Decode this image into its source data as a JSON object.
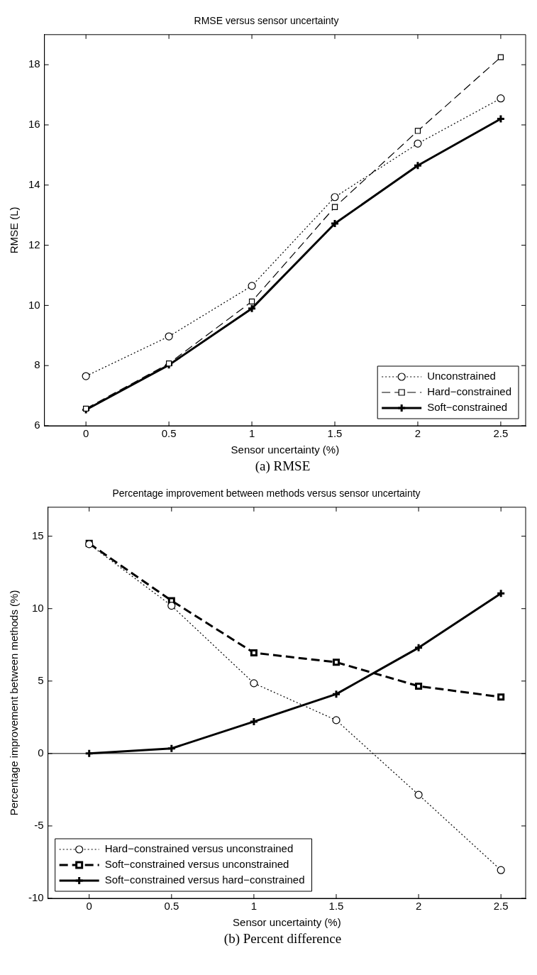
{
  "chart_data": [
    {
      "type": "line",
      "title": "RMSE versus sensor uncertainty",
      "xlabel": "Sensor uncertainty (%)",
      "ylabel": "RMSE (L)",
      "x": [
        0,
        0.5,
        1,
        1.5,
        2,
        2.5
      ],
      "xlim": [
        -0.25,
        2.65
      ],
      "xticks": [
        0,
        0.5,
        1,
        1.5,
        2,
        2.5
      ],
      "ylim": [
        6,
        19
      ],
      "yticks": [
        6,
        8,
        10,
        12,
        14,
        16,
        18
      ],
      "grid": false,
      "legend": "bottom right",
      "series": [
        {
          "name": "Unconstrained",
          "color": "#000000",
          "marker": "circle",
          "line_style": "dotted",
          "values": [
            7.65,
            8.97,
            10.65,
            13.6,
            15.38,
            16.88
          ]
        },
        {
          "name": "Hard−constrained",
          "color": "#000000",
          "marker": "square",
          "line_style": "dashed",
          "values": [
            6.57,
            8.07,
            10.13,
            13.27,
            15.8,
            18.25
          ]
        },
        {
          "name": "Soft−constrained",
          "color": "#000000",
          "marker": "cross",
          "line_style": "solid",
          "values": [
            6.53,
            8.02,
            9.9,
            12.72,
            14.65,
            16.2
          ]
        }
      ],
      "annotations": [
        "(a) RMSE"
      ]
    },
    {
      "type": "line",
      "title": "Percentage improvement between methods versus sensor uncertainty",
      "xlabel": "Sensor uncertainty (%)",
      "ylabel": "Percentage improvement between methods (%)",
      "x": [
        0,
        0.5,
        1,
        1.5,
        2,
        2.5
      ],
      "xlim": [
        -0.25,
        2.65
      ],
      "xticks": [
        0,
        0.5,
        1,
        1.5,
        2,
        2.5
      ],
      "ylim": [
        -10,
        17
      ],
      "yticks": [
        -10,
        -5,
        0,
        5,
        10,
        15
      ],
      "grid": false,
      "legend": "bottom left",
      "ref_lines": [
        {
          "axis": "y",
          "value": 0,
          "color": "#000000"
        }
      ],
      "series": [
        {
          "name": "Hard−constrained versus unconstrained",
          "color": "#000000",
          "marker": "circle",
          "line_style": "dotted",
          "values": [
            14.45,
            10.2,
            4.85,
            2.3,
            -2.85,
            -8.05
          ]
        },
        {
          "name": "Soft−constrained versus unconstrained",
          "color": "#000000",
          "marker": "square",
          "line_style": "dashed",
          "values": [
            14.5,
            10.55,
            6.95,
            6.3,
            4.65,
            3.9
          ]
        },
        {
          "name": "Soft−constrained versus hard−constrained",
          "color": "#000000",
          "marker": "cross",
          "line_style": "solid",
          "values": [
            0,
            0.35,
            2.2,
            4.1,
            7.3,
            11.05
          ]
        }
      ],
      "annotations": [
        "(b) Percent difference"
      ]
    }
  ]
}
